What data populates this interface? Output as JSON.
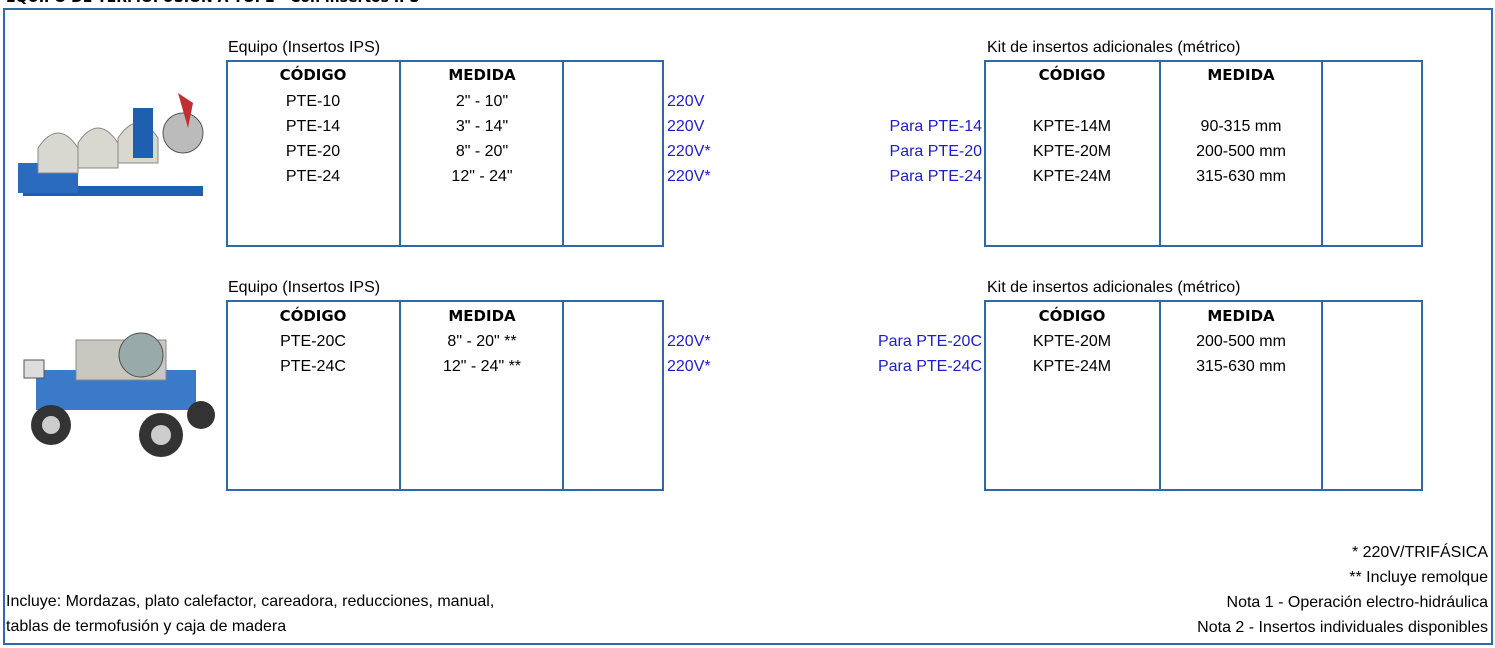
{
  "title": "EQUIPO DE TERMOFUSIÓN A TOPE - Con insertos IPS",
  "sections": [
    {
      "equipment_label": "Equipo (Insertos IPS)",
      "kit_label": "Kit de insertos adicionales (métrico)",
      "headers": [
        "CÓDIGO",
        "MEDIDA"
      ],
      "kit_headers": [
        "CÓDIGO",
        "MEDIDA"
      ],
      "rows": [
        {
          "code": "PTE-10",
          "size": "2\" - 10\"",
          "voltage": "220V"
        },
        {
          "code": "PTE-14",
          "size": "3\" - 14\"",
          "voltage": "220V",
          "kit_for": "Para PTE-14",
          "kit_code": "KPTE-14M",
          "kit_size": "90-315 mm"
        },
        {
          "code": "PTE-20",
          "size": "8\" - 20\"",
          "voltage": "220V*",
          "kit_for": "Para PTE-20",
          "kit_code": "KPTE-20M",
          "kit_size": "200-500 mm"
        },
        {
          "code": "PTE-24",
          "size": "12\" - 24\"",
          "voltage": "220V*",
          "kit_for": "Para PTE-24",
          "kit_code": "KPTE-24M",
          "kit_size": "315-630 mm"
        }
      ]
    },
    {
      "equipment_label": "Equipo (Insertos IPS)",
      "kit_label": "Kit de insertos adicionales (métrico)",
      "headers": [
        "CÓDIGO",
        "MEDIDA"
      ],
      "kit_headers": [
        "CÓDIGO",
        "MEDIDA"
      ],
      "rows": [
        {
          "code": "PTE-20C",
          "size": "8\" - 20\" **",
          "voltage": "220V*",
          "kit_for": "Para PTE-20C",
          "kit_code": "KPTE-20M",
          "kit_size": "200-500 mm"
        },
        {
          "code": "PTE-24C",
          "size": "12\" - 24\" **",
          "voltage": "220V*",
          "kit_for": "Para PTE-24C",
          "kit_code": "KPTE-24M",
          "kit_size": "315-630 mm"
        }
      ]
    }
  ],
  "notes": [
    "* 220V/TRIFÁSICA",
    "** Incluye remolque",
    "Nota 1 - Operación electro-hidráulica",
    "Nota 2 - Insertos individuales disponibles"
  ],
  "includes": [
    "Incluye: Mordazas, plato calefactor, careadora, reducciones, manual,",
    "tablas de termofusión y caja de madera"
  ]
}
